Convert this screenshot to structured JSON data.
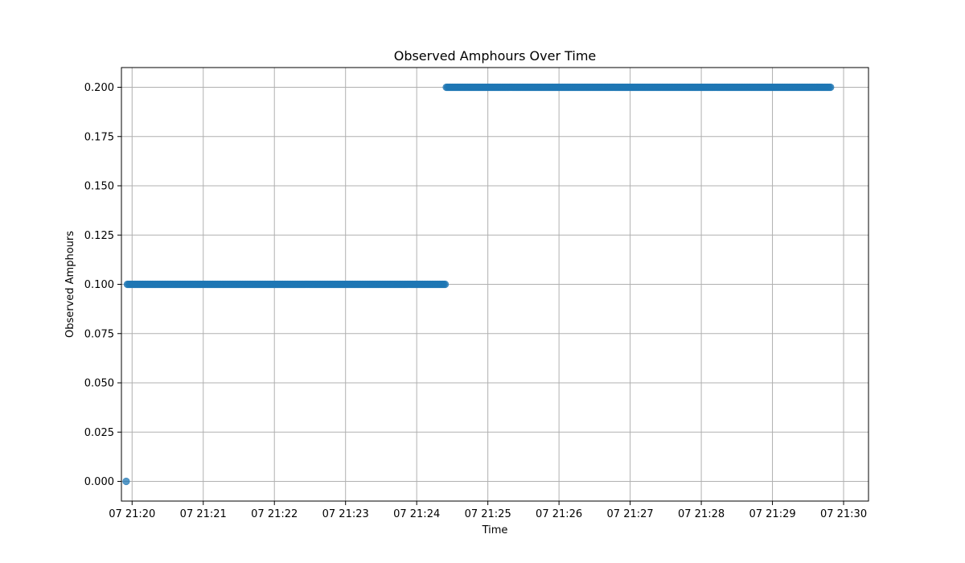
{
  "chart_data": {
    "type": "scatter",
    "title": "Observed Amphours Over Time",
    "xlabel": "Time",
    "ylabel": "Observed Amphours",
    "x_axis": {
      "kind": "time",
      "range": [
        "21:19:51",
        "21:30:21"
      ],
      "ticks": [
        "21:20",
        "21:21",
        "21:22",
        "21:23",
        "21:24",
        "21:25",
        "21:26",
        "21:27",
        "21:28",
        "21:29",
        "21:30"
      ],
      "tick_labels": [
        "07 21:20",
        "07 21:21",
        "07 21:22",
        "07 21:23",
        "07 21:24",
        "07 21:25",
        "07 21:26",
        "07 21:27",
        "07 21:28",
        "07 21:29",
        "07 21:30"
      ]
    },
    "y_axis": {
      "range": [
        -0.01,
        0.21
      ],
      "ticks": [
        0.0,
        0.025,
        0.05,
        0.075,
        0.1,
        0.125,
        0.15,
        0.175,
        0.2
      ],
      "tick_labels": [
        "0.000",
        "0.025",
        "0.050",
        "0.075",
        "0.100",
        "0.125",
        "0.150",
        "0.175",
        "0.200"
      ]
    },
    "grid": true,
    "legend": "none",
    "marker_color": "#1f77b4",
    "series": [
      {
        "segments": [
          {
            "x_start": "21:19:55",
            "x_end": "21:19:55",
            "interval_seconds": 1,
            "y": 0.0
          },
          {
            "x_start": "21:19:56",
            "x_end": "21:24:24",
            "interval_seconds": 1,
            "y": 0.1
          },
          {
            "x_start": "21:24:25",
            "x_end": "21:29:49",
            "interval_seconds": 1,
            "y": 0.2
          }
        ]
      }
    ]
  }
}
